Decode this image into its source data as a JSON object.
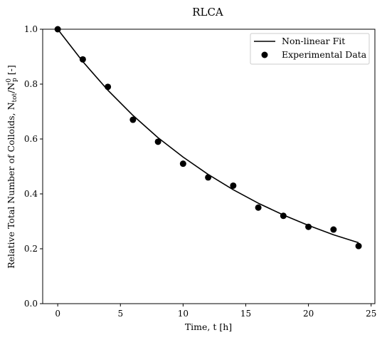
{
  "chart_data": {
    "type": "scatter",
    "title": "RLCA",
    "xlabel": "Time, t [h]",
    "ylabel_parts": {
      "prefix": "Relative Total Number of Colloids, N",
      "sub1": "tot",
      "slash": "/N",
      "sup": "0",
      "sub2": "p",
      "suffix": " [-]"
    },
    "xlim": [
      -1.2,
      25.3
    ],
    "ylim": [
      0.0,
      1.0
    ],
    "xticks": [
      0,
      5,
      10,
      15,
      20,
      25
    ],
    "yticks": [
      0.0,
      0.2,
      0.4,
      0.6,
      0.8,
      1.0
    ],
    "xtick_labels": [
      "0",
      "5",
      "10",
      "15",
      "20",
      "25"
    ],
    "ytick_labels": [
      "0.0",
      "0.2",
      "0.4",
      "0.6",
      "0.8",
      "1.0"
    ],
    "grid": false,
    "legend_position": "top-right",
    "series": [
      {
        "name": "Non-linear Fit",
        "kind": "line",
        "color": "#000000",
        "x": [
          0,
          2,
          4,
          6,
          8,
          10,
          12,
          14,
          16,
          18,
          20,
          22,
          24
        ],
        "y": [
          1.0,
          0.882,
          0.778,
          0.686,
          0.605,
          0.534,
          0.471,
          0.415,
          0.366,
          0.323,
          0.285,
          0.251,
          0.222
        ]
      },
      {
        "name": "Experimental Data",
        "kind": "scatter",
        "color": "#000000",
        "x": [
          0,
          2,
          4,
          6,
          8,
          10,
          12,
          14,
          16,
          18,
          20,
          22,
          24
        ],
        "y": [
          1.0,
          0.89,
          0.79,
          0.67,
          0.59,
          0.51,
          0.46,
          0.43,
          0.35,
          0.32,
          0.28,
          0.27,
          0.21
        ]
      }
    ]
  }
}
